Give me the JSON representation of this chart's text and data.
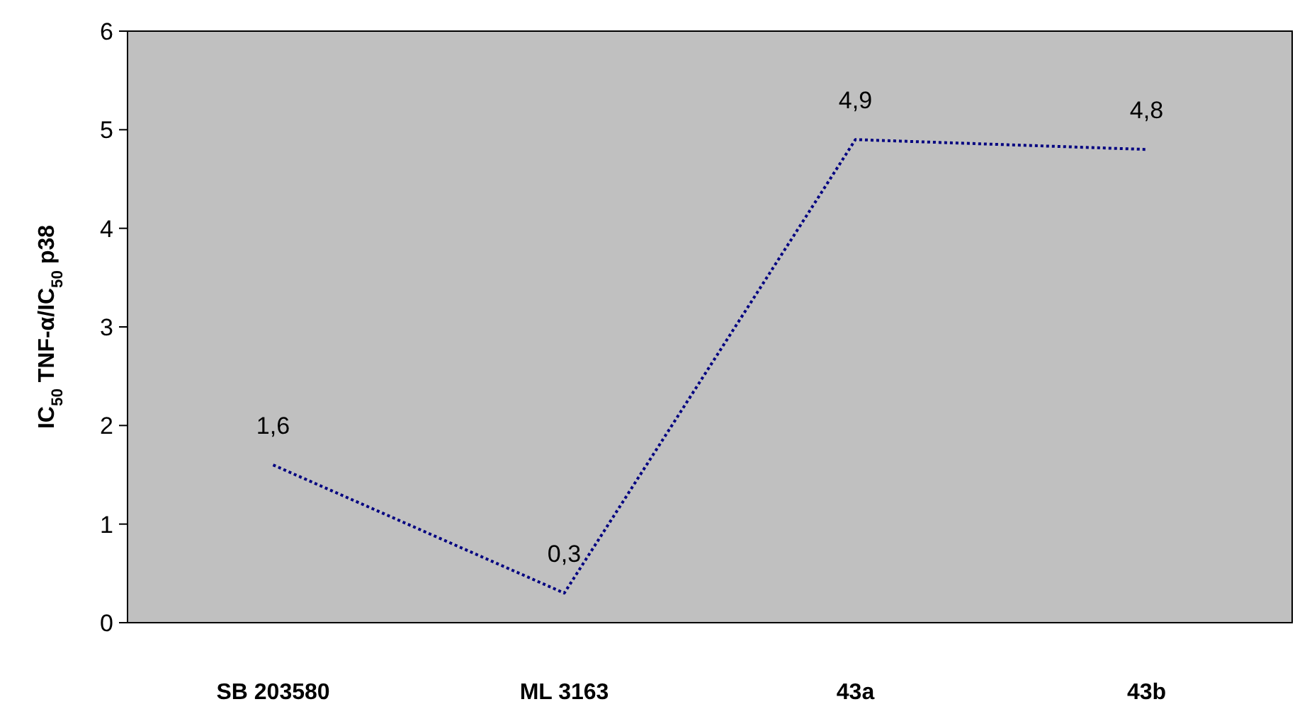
{
  "chart_data": {
    "type": "line",
    "ylabel": "IC$_{50}$ TNF-α/IC$_{50}$ p38",
    "categories": [
      "SB 203580",
      "ML 3163",
      "43a",
      "43b"
    ],
    "series": [
      {
        "color": "#000080",
        "values": [
          1.6,
          0.3,
          4.9,
          4.8
        ],
        "value_labels": [
          "1,6",
          "0,3",
          "4,9",
          "4,8"
        ]
      }
    ],
    "ylim": [
      0,
      6
    ],
    "yticks": [
      0,
      1,
      2,
      3,
      4,
      5,
      6
    ],
    "line_style": "dotted",
    "grid": false
  }
}
